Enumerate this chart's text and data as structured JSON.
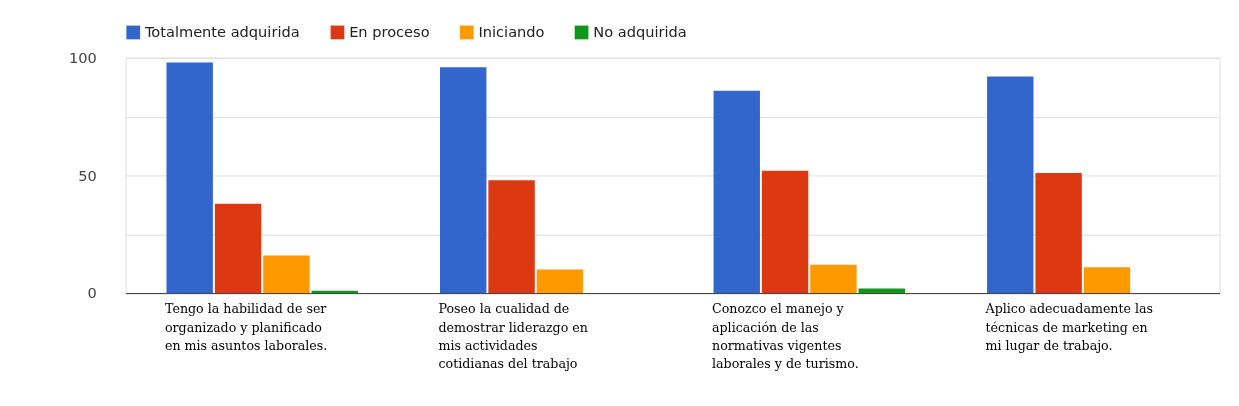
{
  "chart_data": {
    "type": "bar",
    "categories": [
      "Tengo la habilidad de ser organizado y planificado en mis asuntos laborales.",
      "Poseo la cualidad de demostrar liderazgo en mis actividades cotidianas del trabajo",
      "Conozco el manejo y aplicación de las normativas vigentes laborales y de turismo.",
      "Aplico adecuadamente las técnicas de marketing en mi lugar de trabajo."
    ],
    "series": [
      {
        "name": "Totalmente adquirida",
        "color": "#3366cc",
        "values": [
          98,
          96,
          86,
          92
        ]
      },
      {
        "name": "En proceso",
        "color": "#dc3912",
        "values": [
          38,
          48,
          52,
          51
        ]
      },
      {
        "name": "Iniciando",
        "color": "#ff9900",
        "values": [
          16,
          10,
          12,
          11
        ]
      },
      {
        "name": "No adquirida",
        "color": "#109618",
        "values": [
          1,
          0,
          2,
          0
        ]
      }
    ],
    "ylim": [
      0,
      100
    ],
    "yticks": [
      0,
      {
        "value": 25,
        "label": null
      },
      50,
      {
        "value": 75,
        "label": null
      },
      100
    ],
    "grid": "y",
    "legend": "top"
  }
}
